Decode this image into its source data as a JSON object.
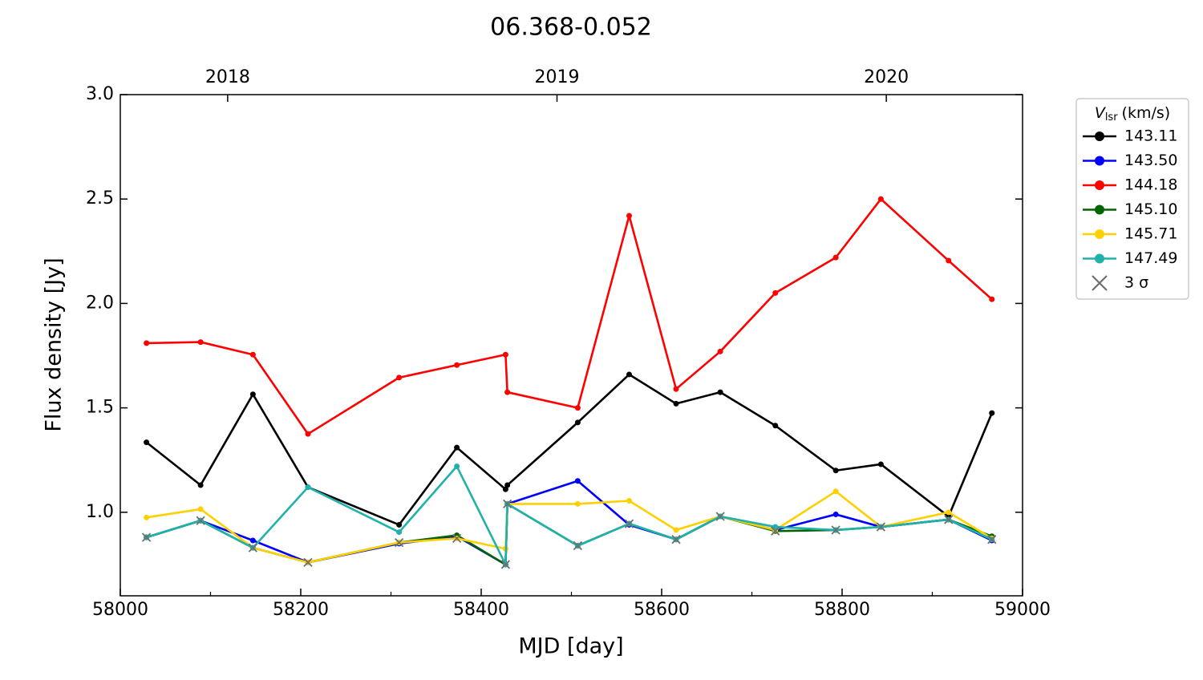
{
  "chart_data": {
    "type": "line",
    "title": "06.368-0.052",
    "x_label": "MJD [day]",
    "y_label": "Flux density [Jy]",
    "xlim": [
      58000,
      59000
    ],
    "xticks": [
      58000,
      58200,
      58400,
      58600,
      58800,
      59000
    ],
    "xminorticks": [
      58100,
      58300,
      58500,
      58700,
      58900
    ],
    "x2ticks": [
      {
        "value": 58119,
        "label": "2018"
      },
      {
        "value": 58484,
        "label": "2019"
      },
      {
        "value": 58849,
        "label": "2020"
      }
    ],
    "ylim": [
      0.6,
      3.0
    ],
    "yticks": [
      {
        "value": 1,
        "label": "1.0"
      },
      1.5,
      {
        "value": 2,
        "label": "2.0"
      },
      2.5,
      {
        "value": 3,
        "label": "3.0"
      }
    ],
    "legend_title": {
      "symbol": "V",
      "subscript": "lsr",
      "unit": "(km/s)"
    },
    "legend_position": "outside right",
    "x": [
      58029,
      58089,
      58147,
      58208,
      58309,
      58373,
      58427,
      58429,
      58507,
      58564,
      58616,
      58665,
      58726,
      58793,
      58843,
      58918,
      58966
    ],
    "series": [
      {
        "name": "143.11",
        "color": "#000000",
        "values": [
          1.335,
          1.13,
          1.565,
          1.12,
          0.94,
          1.31,
          1.11,
          1.13,
          1.43,
          1.66,
          1.52,
          1.575,
          1.415,
          1.2,
          1.23,
          0.98,
          1.475
        ]
      },
      {
        "name": "143.50",
        "color": "#0000ff",
        "values": [
          0.88,
          0.96,
          0.865,
          0.76,
          0.85,
          0.885,
          0.75,
          1.04,
          1.15,
          0.94,
          0.87,
          0.98,
          0.915,
          0.99,
          0.93,
          0.965,
          0.865
        ]
      },
      {
        "name": "144.18",
        "color": "#ff0000",
        "values": [
          1.81,
          1.815,
          1.755,
          1.375,
          1.645,
          1.705,
          1.755,
          1.575,
          1.5,
          2.42,
          1.59,
          1.77,
          2.05,
          2.22,
          2.5,
          2.205,
          2.02
        ]
      },
      {
        "name": "145.10",
        "color": "#006400",
        "values": [
          0.88,
          0.96,
          0.83,
          0.76,
          0.855,
          0.89,
          0.75,
          1.04,
          0.84,
          0.945,
          0.87,
          0.98,
          0.91,
          0.915,
          0.93,
          0.965,
          0.885
        ]
      },
      {
        "name": "145.71",
        "color": "#ffd000",
        "values": [
          0.975,
          1.015,
          0.83,
          0.76,
          0.855,
          0.875,
          0.825,
          1.04,
          1.04,
          1.055,
          0.915,
          0.98,
          0.915,
          1.1,
          0.93,
          1.0,
          0.875
        ]
      },
      {
        "name": "147.49",
        "color": "#20b2aa",
        "values": [
          0.88,
          0.96,
          0.83,
          1.12,
          0.905,
          1.22,
          0.75,
          1.04,
          0.84,
          0.945,
          0.87,
          0.98,
          0.93,
          0.915,
          0.93,
          0.965,
          0.87
        ]
      }
    ],
    "limit_markers": {
      "name": "3 σ",
      "color": "#6e6e6e",
      "x": [
        58029,
        58089,
        58147,
        58208,
        58309,
        58373,
        58427,
        58429,
        58507,
        58564,
        58616,
        58665,
        58726,
        58793,
        58843,
        58918,
        58966
      ],
      "values": [
        0.88,
        0.96,
        0.83,
        0.76,
        0.855,
        0.875,
        0.75,
        1.04,
        0.84,
        0.945,
        0.87,
        0.98,
        0.91,
        0.915,
        0.93,
        0.965,
        0.87
      ]
    }
  }
}
